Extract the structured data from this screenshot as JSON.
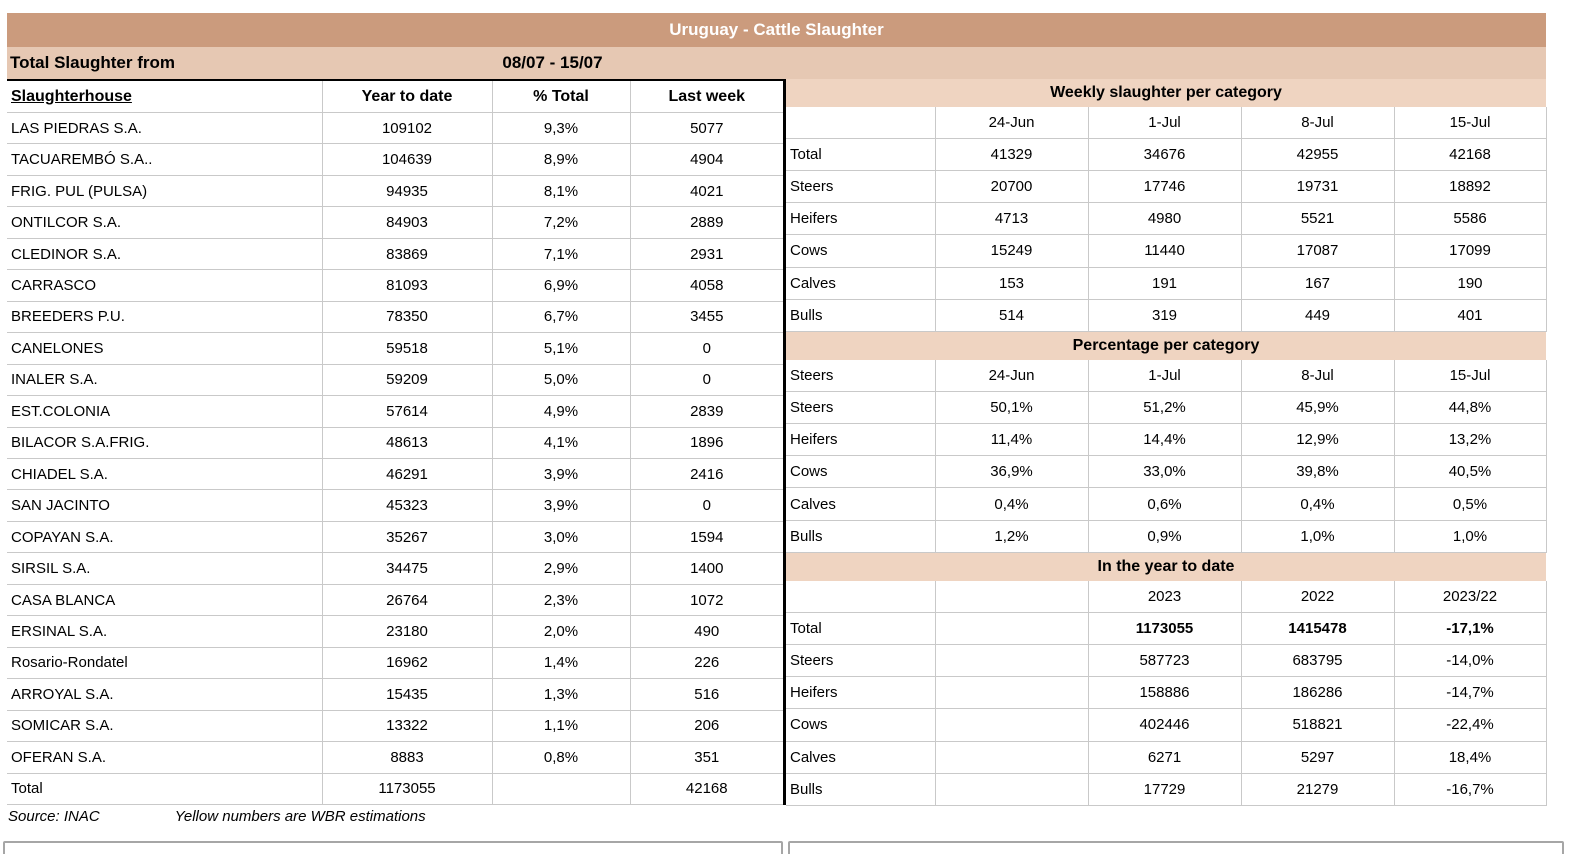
{
  "title": "Uruguay - Cattle Slaughter",
  "subheader": {
    "label": "Total Slaughter from",
    "period": "08/07 - 15/07"
  },
  "left_table": {
    "headers": [
      "Slaughterhouse",
      "Year to date",
      "% Total",
      "Last week"
    ],
    "rows": [
      [
        "LAS PIEDRAS S.A.",
        "109102",
        "9,3%",
        "5077"
      ],
      [
        "TACUAREMBÓ S.A..",
        "104639",
        "8,9%",
        "4904"
      ],
      [
        "FRIG. PUL (PULSA)",
        "94935",
        "8,1%",
        "4021"
      ],
      [
        "ONTILCOR S.A.",
        "84903",
        "7,2%",
        "2889"
      ],
      [
        "CLEDINOR S.A.",
        "83869",
        "7,1%",
        "2931"
      ],
      [
        "CARRASCO",
        "81093",
        "6,9%",
        "4058"
      ],
      [
        "BREEDERS P.U.",
        "78350",
        "6,7%",
        "3455"
      ],
      [
        "CANELONES",
        "59518",
        "5,1%",
        "0"
      ],
      [
        "INALER S.A.",
        "59209",
        "5,0%",
        "0"
      ],
      [
        "EST.COLONIA",
        "57614",
        "4,9%",
        "2839"
      ],
      [
        "BILACOR S.A.FRIG.",
        "48613",
        "4,1%",
        "1896"
      ],
      [
        "CHIADEL S.A.",
        "46291",
        "3,9%",
        "2416"
      ],
      [
        "SAN JACINTO",
        "45323",
        "3,9%",
        "0"
      ],
      [
        "COPAYAN S.A.",
        "35267",
        "3,0%",
        "1594"
      ],
      [
        "SIRSIL S.A.",
        "34475",
        "2,9%",
        "1400"
      ],
      [
        "CASA BLANCA",
        "26764",
        "2,3%",
        "1072"
      ],
      [
        "ERSINAL S.A.",
        "23180",
        "2,0%",
        "490"
      ],
      [
        "Rosario-Rondatel",
        "16962",
        "1,4%",
        "226"
      ],
      [
        "ARROYAL S.A.",
        "15435",
        "1,3%",
        "516"
      ],
      [
        "SOMICAR S.A.",
        "13322",
        "1,1%",
        "206"
      ],
      [
        "OFERAN S.A.",
        "8883",
        "0,8%",
        "351"
      ],
      [
        "Total",
        "1173055",
        "",
        "42168"
      ]
    ]
  },
  "right_panel": {
    "weekly": {
      "title": "Weekly slaughter per category",
      "columns": [
        "",
        "24-Jun",
        "1-Jul",
        "8-Jul",
        "15-Jul"
      ],
      "rows": [
        [
          "Total",
          "41329",
          "34676",
          "42955",
          "42168"
        ],
        [
          "Steers",
          "20700",
          "17746",
          "19731",
          "18892"
        ],
        [
          "Heifers",
          "4713",
          "4980",
          "5521",
          "5586"
        ],
        [
          "Cows",
          "15249",
          "11440",
          "17087",
          "17099"
        ],
        [
          "Calves",
          "153",
          "191",
          "167",
          "190"
        ],
        [
          "Bulls",
          "514",
          "319",
          "449",
          "401"
        ]
      ]
    },
    "percentage": {
      "title": "Percentage per category",
      "columns": [
        "Steers",
        "24-Jun",
        "1-Jul",
        "8-Jul",
        "15-Jul"
      ],
      "rows": [
        [
          "Steers",
          "50,1%",
          "51,2%",
          "45,9%",
          "44,8%"
        ],
        [
          "Heifers",
          "11,4%",
          "14,4%",
          "12,9%",
          "13,2%"
        ],
        [
          "Cows",
          "36,9%",
          "33,0%",
          "39,8%",
          "40,5%"
        ],
        [
          "Calves",
          "0,4%",
          "0,6%",
          "0,4%",
          "0,5%"
        ],
        [
          "Bulls",
          "1,2%",
          "0,9%",
          "1,0%",
          "1,0%"
        ]
      ]
    },
    "ytd": {
      "title": "In the year to date",
      "columns": [
        "",
        "",
        "2023",
        "2022",
        "2023/22"
      ],
      "rows": [
        [
          "Total",
          "",
          "1173055",
          "1415478",
          "-17,1%"
        ],
        [
          "Steers",
          "",
          "587723",
          "683795",
          "-14,0%"
        ],
        [
          "Heifers",
          "",
          "158886",
          "186286",
          "-14,7%"
        ],
        [
          "Cows",
          "",
          "402446",
          "518821",
          "-22,4%"
        ],
        [
          "Calves",
          "",
          "6271",
          "5297",
          "18,4%"
        ],
        [
          "Bulls",
          "",
          "17729",
          "21279",
          "-16,7%"
        ]
      ]
    }
  },
  "footer": {
    "source": "Source: INAC",
    "note": "Yellow numbers are WBR estimations"
  },
  "colors": {
    "title_bar": "#CB9B7D",
    "sub_bar": "#E6C8B3",
    "section_bar": "#EFD4C1",
    "grid_line": "#C9C9C9",
    "divider": "#000000",
    "title_text": "#FFFFFF"
  }
}
